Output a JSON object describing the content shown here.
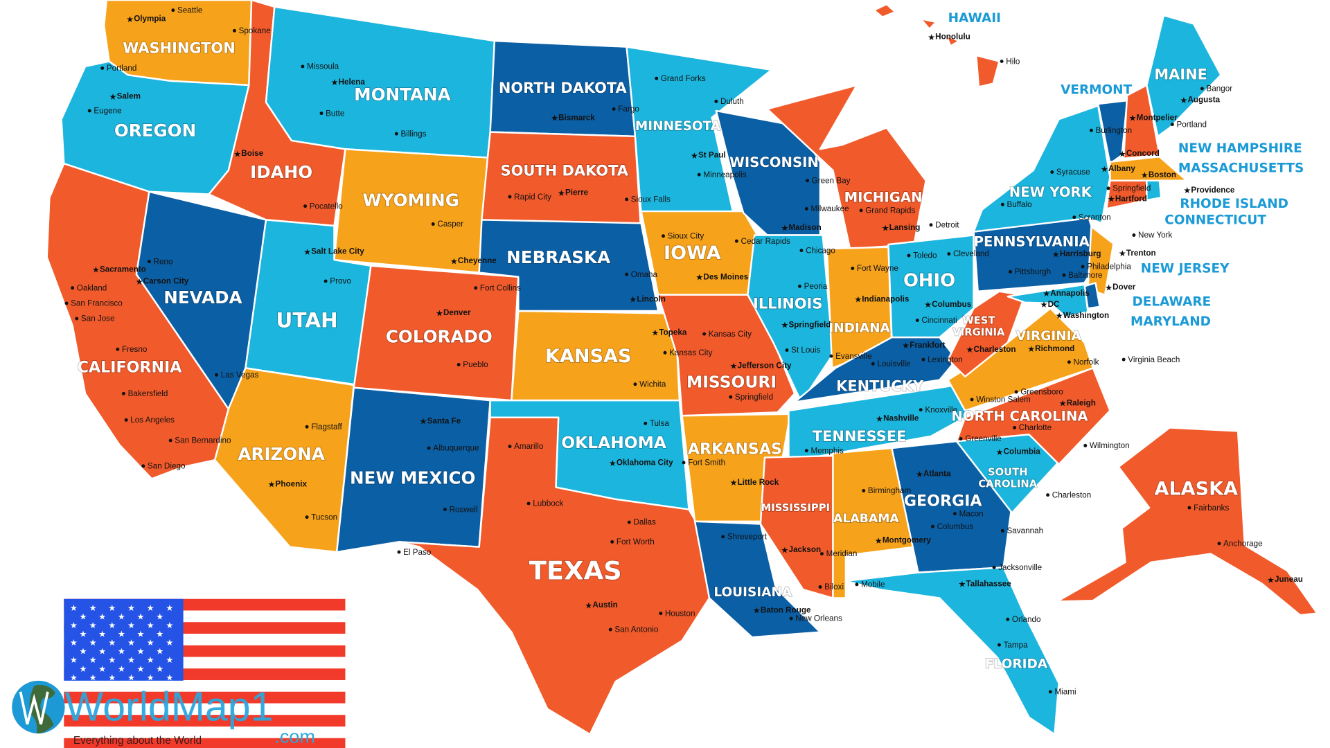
{
  "colors": {
    "orange": "#f7a21b",
    "red": "#f15a2b",
    "light_blue": "#1cb5dd",
    "dark_blue": "#0b5fa5",
    "callout_text": "#1a9ad6"
  },
  "states": [
    {
      "name": "WASHINGTON",
      "fill": "orange"
    },
    {
      "name": "OREGON",
      "fill": "light_blue"
    },
    {
      "name": "CALIFORNIA",
      "fill": "red"
    },
    {
      "name": "NEVADA",
      "fill": "dark_blue"
    },
    {
      "name": "IDAHO",
      "fill": "red"
    },
    {
      "name": "MONTANA",
      "fill": "light_blue"
    },
    {
      "name": "WYOMING",
      "fill": "orange"
    },
    {
      "name": "UTAH",
      "fill": "light_blue"
    },
    {
      "name": "ARIZONA",
      "fill": "orange"
    },
    {
      "name": "COLORADO",
      "fill": "red"
    },
    {
      "name": "NEW MEXICO",
      "fill": "dark_blue"
    },
    {
      "name": "NORTH DAKOTA",
      "fill": "dark_blue"
    },
    {
      "name": "SOUTH DAKOTA",
      "fill": "red"
    },
    {
      "name": "NEBRASKA",
      "fill": "dark_blue"
    },
    {
      "name": "KANSAS",
      "fill": "orange"
    },
    {
      "name": "OKLAHOMA",
      "fill": "light_blue"
    },
    {
      "name": "TEXAS",
      "fill": "red"
    },
    {
      "name": "MINNESOTA",
      "fill": "light_blue"
    },
    {
      "name": "IOWA",
      "fill": "orange"
    },
    {
      "name": "MISSOURI",
      "fill": "red"
    },
    {
      "name": "ARKANSAS",
      "fill": "orange"
    },
    {
      "name": "LOUISIANA",
      "fill": "dark_blue"
    },
    {
      "name": "WISCONSIN",
      "fill": "dark_blue"
    },
    {
      "name": "ILLINOIS",
      "fill": "light_blue"
    },
    {
      "name": "MICHIGAN",
      "fill": "red"
    },
    {
      "name": "INDIANA",
      "fill": "orange"
    },
    {
      "name": "OHIO",
      "fill": "light_blue"
    },
    {
      "name": "KENTUCKY",
      "fill": "dark_blue"
    },
    {
      "name": "TENNESSEE",
      "fill": "light_blue"
    },
    {
      "name": "MISSISSIPPI",
      "fill": "red"
    },
    {
      "name": "ALABAMA",
      "fill": "orange"
    },
    {
      "name": "GEORGIA",
      "fill": "dark_blue"
    },
    {
      "name": "FLORIDA",
      "fill": "light_blue"
    },
    {
      "name": "SOUTH CAROLINA",
      "fill": "light_blue"
    },
    {
      "name": "NORTH CAROLINA",
      "fill": "red"
    },
    {
      "name": "VIRGINIA",
      "fill": "orange"
    },
    {
      "name": "WEST VIRGINIA",
      "fill": "red"
    },
    {
      "name": "PENNSYLVANIA",
      "fill": "dark_blue"
    },
    {
      "name": "NEW YORK",
      "fill": "light_blue"
    },
    {
      "name": "VERMONT",
      "fill": "dark_blue"
    },
    {
      "name": "NEW HAMPSHIRE",
      "fill": "red"
    },
    {
      "name": "MAINE",
      "fill": "light_blue"
    },
    {
      "name": "MASSACHUSETTS",
      "fill": "orange"
    },
    {
      "name": "CONNECTICUT",
      "fill": "red"
    },
    {
      "name": "RHODE ISLAND",
      "fill": "light_blue"
    },
    {
      "name": "NEW JERSEY",
      "fill": "orange"
    },
    {
      "name": "DELAWARE",
      "fill": "dark_blue"
    },
    {
      "name": "MARYLAND",
      "fill": "light_blue"
    },
    {
      "name": "ALASKA",
      "fill": "red"
    },
    {
      "name": "HAWAII",
      "fill": "red"
    }
  ],
  "cities": [
    {
      "name": "Seattle",
      "capital": false
    },
    {
      "name": "Olympia",
      "capital": true
    },
    {
      "name": "Spokane",
      "capital": false
    },
    {
      "name": "Portland",
      "capital": false
    },
    {
      "name": "Salem",
      "capital": true
    },
    {
      "name": "Eugene",
      "capital": false
    },
    {
      "name": "Missoula",
      "capital": false
    },
    {
      "name": "Helena",
      "capital": true
    },
    {
      "name": "Butte",
      "capital": false
    },
    {
      "name": "Billings",
      "capital": false
    },
    {
      "name": "Boise",
      "capital": true
    },
    {
      "name": "Pocatello",
      "capital": false
    },
    {
      "name": "Grand Forks",
      "capital": false
    },
    {
      "name": "Fargo",
      "capital": false
    },
    {
      "name": "Bismarck",
      "capital": true
    },
    {
      "name": "Duluth",
      "capital": false
    },
    {
      "name": "St Paul",
      "capital": true
    },
    {
      "name": "Minneapolis",
      "capital": false
    },
    {
      "name": "Pierre",
      "capital": true
    },
    {
      "name": "Rapid City",
      "capital": false
    },
    {
      "name": "Sioux Falls",
      "capital": false
    },
    {
      "name": "Casper",
      "capital": false
    },
    {
      "name": "Cheyenne",
      "capital": true
    },
    {
      "name": "Salt Lake City",
      "capital": true
    },
    {
      "name": "Provo",
      "capital": false
    },
    {
      "name": "Reno",
      "capital": false
    },
    {
      "name": "Carson City",
      "capital": true
    },
    {
      "name": "Sacramento",
      "capital": true
    },
    {
      "name": "Oakland",
      "capital": false
    },
    {
      "name": "San Francisco",
      "capital": false
    },
    {
      "name": "San Jose",
      "capital": false
    },
    {
      "name": "Fresno",
      "capital": false
    },
    {
      "name": "Bakersfield",
      "capital": false
    },
    {
      "name": "Los Angeles",
      "capital": false
    },
    {
      "name": "San Bernardino",
      "capital": false
    },
    {
      "name": "San Diego",
      "capital": false
    },
    {
      "name": "Las Vegas",
      "capital": false
    },
    {
      "name": "Flagstaff",
      "capital": false
    },
    {
      "name": "Phoenix",
      "capital": true
    },
    {
      "name": "Tucson",
      "capital": false
    },
    {
      "name": "Santa Fe",
      "capital": true
    },
    {
      "name": "Albuquerque",
      "capital": false
    },
    {
      "name": "Roswell",
      "capital": false
    },
    {
      "name": "El Paso",
      "capital": false
    },
    {
      "name": "Denver",
      "capital": true
    },
    {
      "name": "Fort Collins",
      "capital": false
    },
    {
      "name": "Pueblo",
      "capital": false
    },
    {
      "name": "Omaha",
      "capital": false
    },
    {
      "name": "Lincoln",
      "capital": true
    },
    {
      "name": "Sioux City",
      "capital": false
    },
    {
      "name": "Cedar Rapids",
      "capital": false
    },
    {
      "name": "Des Moines",
      "capital": true
    },
    {
      "name": "Topeka",
      "capital": true
    },
    {
      "name": "Kansas City",
      "capital": false
    },
    {
      "name": "Kansas City",
      "capital": false
    },
    {
      "name": "Wichita",
      "capital": false
    },
    {
      "name": "Jefferson City",
      "capital": true
    },
    {
      "name": "Springfield",
      "capital": false
    },
    {
      "name": "St Louis",
      "capital": false
    },
    {
      "name": "Tulsa",
      "capital": false
    },
    {
      "name": "Oklahoma City",
      "capital": true
    },
    {
      "name": "Amarillo",
      "capital": false
    },
    {
      "name": "Lubbock",
      "capital": false
    },
    {
      "name": "Dallas",
      "capital": false
    },
    {
      "name": "Fort Worth",
      "capital": false
    },
    {
      "name": "Austin",
      "capital": true
    },
    {
      "name": "Houston",
      "capital": false
    },
    {
      "name": "San Antonio",
      "capital": false
    },
    {
      "name": "Fort Smith",
      "capital": false
    },
    {
      "name": "Little Rock",
      "capital": true
    },
    {
      "name": "Memphis",
      "capital": false
    },
    {
      "name": "Shreveport",
      "capital": false
    },
    {
      "name": "Baton Rouge",
      "capital": true
    },
    {
      "name": "New Orleans",
      "capital": false
    },
    {
      "name": "Jackson",
      "capital": true
    },
    {
      "name": "Biloxi",
      "capital": false
    },
    {
      "name": "Meridian",
      "capital": false
    },
    {
      "name": "Birmingham",
      "capital": false
    },
    {
      "name": "Montgomery",
      "capital": true
    },
    {
      "name": "Mobile",
      "capital": false
    },
    {
      "name": "Atlanta",
      "capital": true
    },
    {
      "name": "Macon",
      "capital": false
    },
    {
      "name": "Columbus",
      "capital": false
    },
    {
      "name": "Savannah",
      "capital": false
    },
    {
      "name": "Jacksonville",
      "capital": false
    },
    {
      "name": "Tallahassee",
      "capital": true
    },
    {
      "name": "Orlando",
      "capital": false
    },
    {
      "name": "Tampa",
      "capital": false
    },
    {
      "name": "Miami",
      "capital": false
    },
    {
      "name": "Green Bay",
      "capital": false
    },
    {
      "name": "Milwaukee",
      "capital": false
    },
    {
      "name": "Madison",
      "capital": true
    },
    {
      "name": "Chicago",
      "capital": false
    },
    {
      "name": "Peoria",
      "capital": false
    },
    {
      "name": "Springfield",
      "capital": true
    },
    {
      "name": "Evansville",
      "capital": false
    },
    {
      "name": "Grand Rapids",
      "capital": false
    },
    {
      "name": "Lansing",
      "capital": true
    },
    {
      "name": "Detroit",
      "capital": false
    },
    {
      "name": "Fort Wayne",
      "capital": false
    },
    {
      "name": "Indianapolis",
      "capital": true
    },
    {
      "name": "Toledo",
      "capital": false
    },
    {
      "name": "Cleveland",
      "capital": false
    },
    {
      "name": "Columbus",
      "capital": true
    },
    {
      "name": "Cincinnati",
      "capital": false
    },
    {
      "name": "Frankfort",
      "capital": true
    },
    {
      "name": "Louisville",
      "capital": false
    },
    {
      "name": "Lexington",
      "capital": false
    },
    {
      "name": "Nashville",
      "capital": true
    },
    {
      "name": "Knoxville",
      "capital": false
    },
    {
      "name": "Charleston",
      "capital": true
    },
    {
      "name": "Richmond",
      "capital": true
    },
    {
      "name": "Norfolk",
      "capital": false
    },
    {
      "name": "Virginia Beach",
      "capital": false
    },
    {
      "name": "Greensboro",
      "capital": false
    },
    {
      "name": "Winston Salem",
      "capital": false
    },
    {
      "name": "Raleigh",
      "capital": true
    },
    {
      "name": "Charlotte",
      "capital": false
    },
    {
      "name": "Greenville",
      "capital": false
    },
    {
      "name": "Columbia",
      "capital": true
    },
    {
      "name": "Charleston",
      "capital": false
    },
    {
      "name": "Wilmington",
      "capital": false
    },
    {
      "name": "Pittsburgh",
      "capital": false
    },
    {
      "name": "Harrisburg",
      "capital": true
    },
    {
      "name": "Philadelphia",
      "capital": false
    },
    {
      "name": "Scranton",
      "capital": false
    },
    {
      "name": "Buffalo",
      "capital": false
    },
    {
      "name": "Syracuse",
      "capital": false
    },
    {
      "name": "Albany",
      "capital": true
    },
    {
      "name": "Burlington",
      "capital": false
    },
    {
      "name": "Montpelier",
      "capital": true
    },
    {
      "name": "Concord",
      "capital": true
    },
    {
      "name": "Bangor",
      "capital": false
    },
    {
      "name": "Augusta",
      "capital": true
    },
    {
      "name": "Portland",
      "capital": false
    },
    {
      "name": "Boston",
      "capital": true
    },
    {
      "name": "Springfield",
      "capital": false
    },
    {
      "name": "Hartford",
      "capital": true
    },
    {
      "name": "Providence",
      "capital": true
    },
    {
      "name": "New York",
      "capital": false
    },
    {
      "name": "Trenton",
      "capital": true
    },
    {
      "name": "Dover",
      "capital": true
    },
    {
      "name": "Baltimore",
      "capital": false
    },
    {
      "name": "Annapolis",
      "capital": true
    },
    {
      "name": "DC",
      "capital": true
    },
    {
      "name": "Washington",
      "capital": true
    },
    {
      "name": "Honolulu",
      "capital": true
    },
    {
      "name": "Hilo",
      "capital": false
    },
    {
      "name": "Fairbanks",
      "capital": false
    },
    {
      "name": "Anchorage",
      "capital": false
    },
    {
      "name": "Juneau",
      "capital": true
    }
  ],
  "logo": {
    "brand": "WorldMap1",
    "tld": ".com",
    "tagline": "Everything about the World"
  },
  "flag": {
    "name": "United States flag"
  }
}
